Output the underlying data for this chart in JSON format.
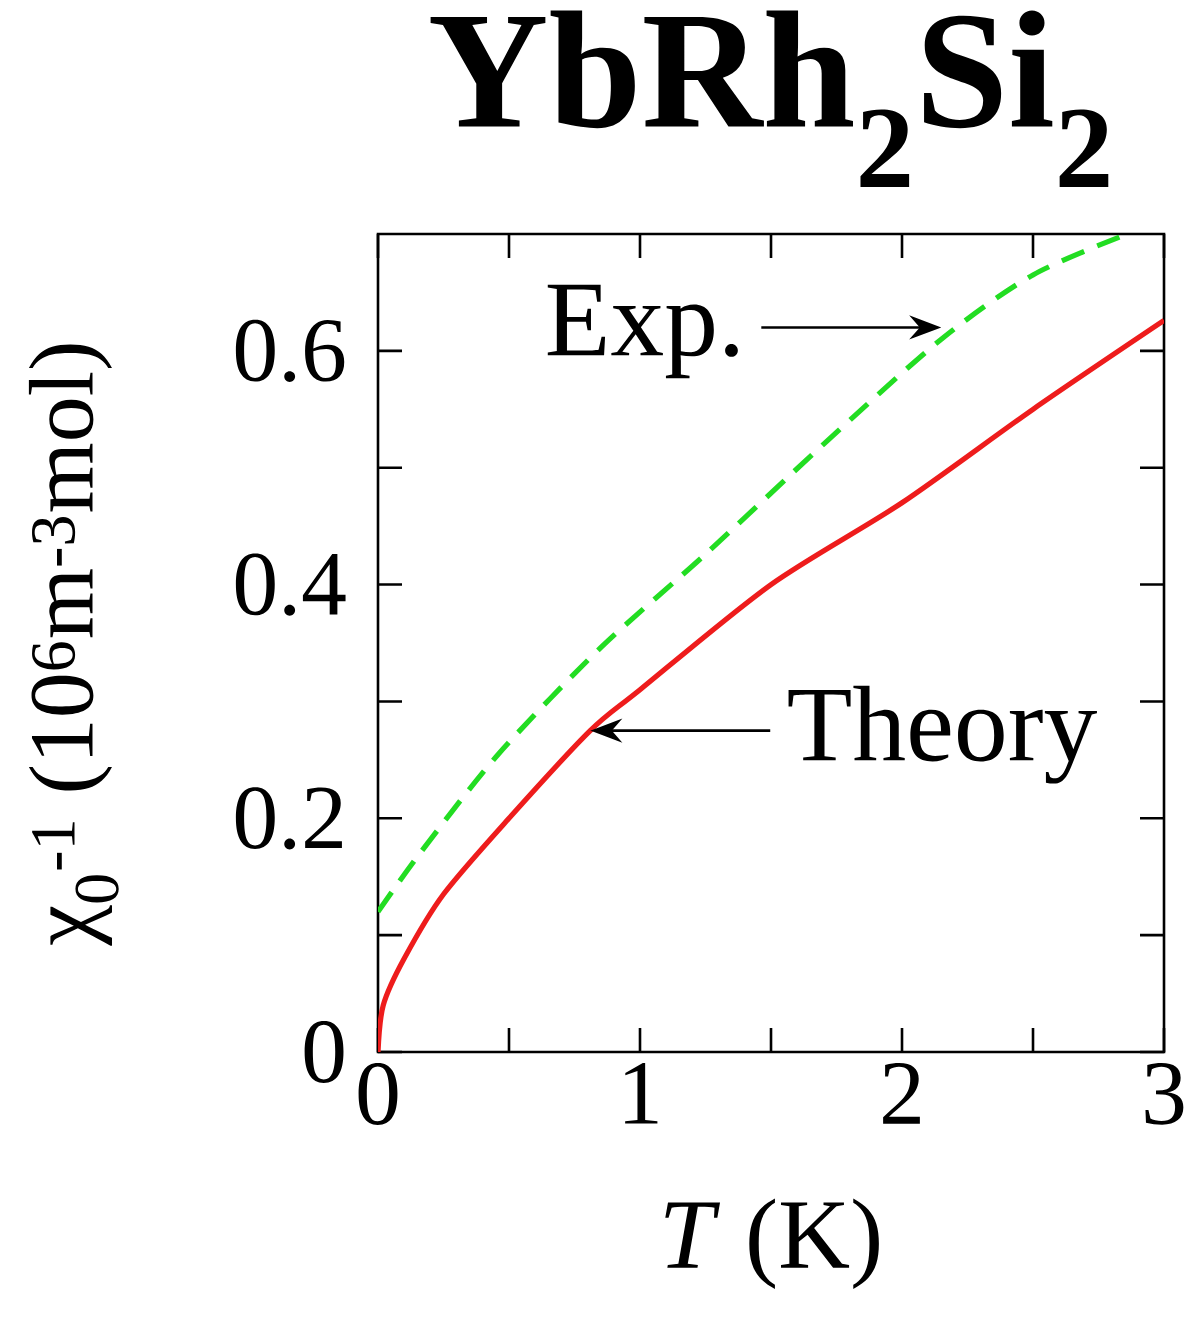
{
  "chart_data": {
    "type": "line",
    "title": "YbRh$_{2}$Si$_{2}$",
    "xlabel": "*T* (K)",
    "ylabel": "χ$_{0}$$^{-1}$ (10$^{6}$m$^{-3}$mol)",
    "xlim": [
      0,
      3
    ],
    "ylim": [
      0,
      0.7
    ],
    "xticks": [
      0,
      {
        "value": 0.5,
        "label": null
      },
      1,
      {
        "value": 1.5,
        "label": null
      },
      2,
      {
        "value": 2.5,
        "label": null
      },
      3
    ],
    "yticks": [
      0,
      {
        "value": 0.1,
        "label": null
      },
      0.2,
      {
        "value": 0.3,
        "label": null
      },
      0.4,
      {
        "value": 0.5,
        "label": null
      },
      0.6
    ],
    "grid": false,
    "series": [
      {
        "color": "#22dd22",
        "line_style": "dashed",
        "x": [
          0,
          0.16,
          0.46,
          0.85,
          1.25,
          1.7,
          2.15,
          2.5,
          2.86
        ],
        "values": [
          0.12,
          0.17,
          0.255,
          0.346,
          0.426,
          0.52,
          0.61,
          0.665,
          0.7
        ]
      },
      {
        "color": "#ee1c1c",
        "line_style": "solid",
        "x": [
          0,
          0.02,
          0.1,
          0.25,
          0.5,
          0.81,
          1.0,
          1.5,
          2.0,
          2.5,
          3.0
        ],
        "values": [
          0,
          0.04,
          0.08,
          0.135,
          0.2,
          0.275,
          0.31,
          0.4,
          0.47,
          0.55,
          0.626
        ]
      }
    ],
    "annotations": [
      {
        "text": "Exp.",
        "x": 2.15,
        "y": 0.62
      },
      {
        "text": "Theory",
        "x": 0.81,
        "y": 0.275
      }
    ]
  }
}
